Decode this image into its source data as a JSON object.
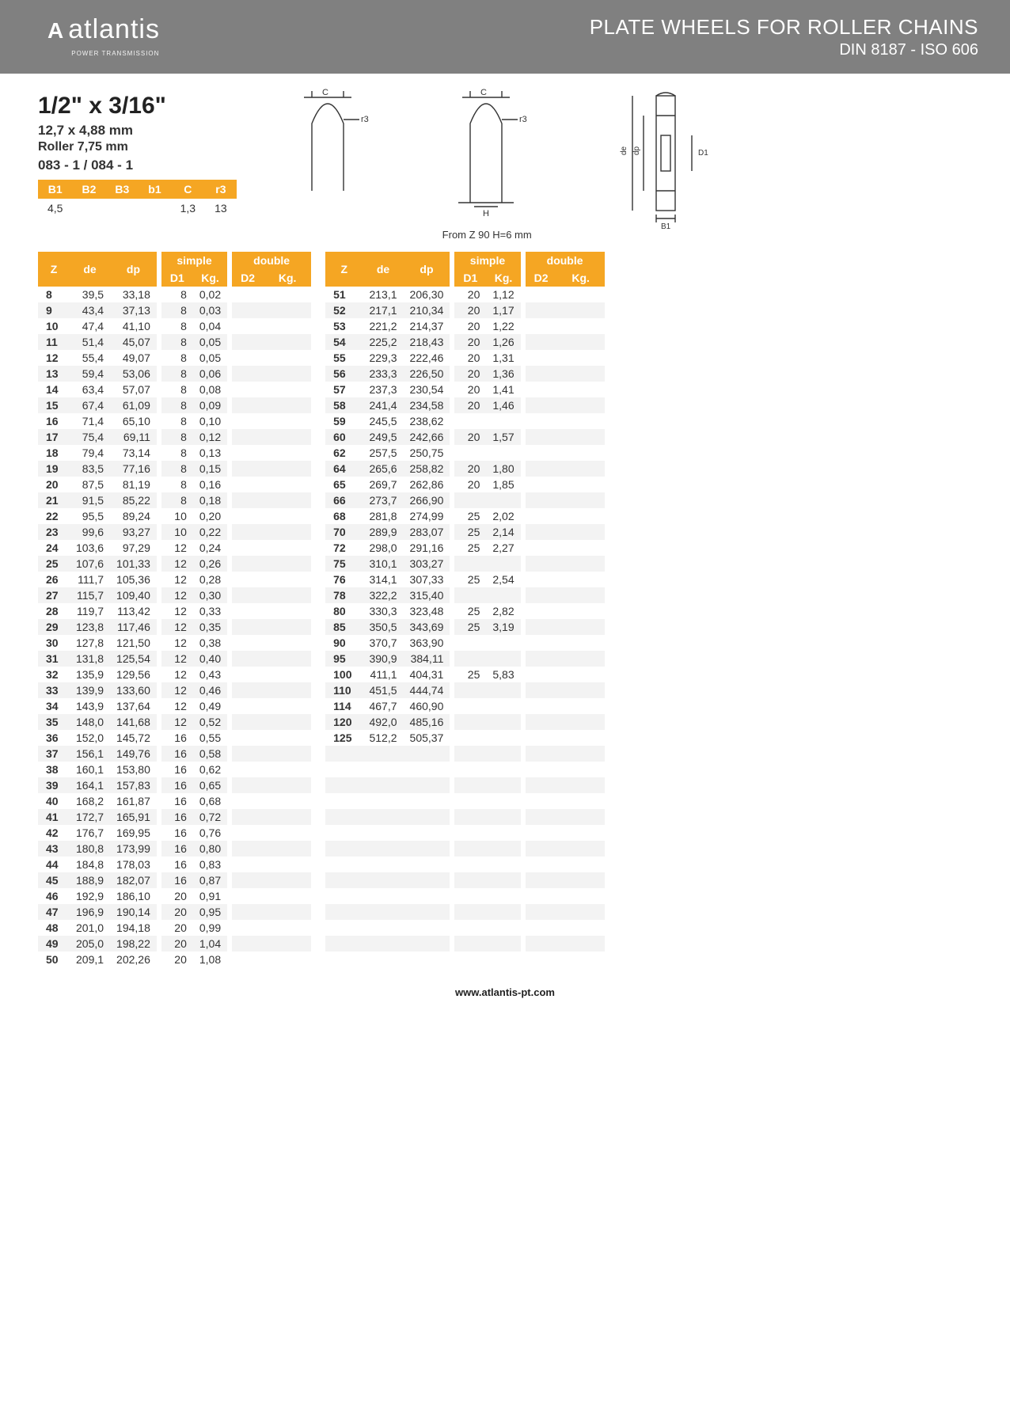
{
  "header": {
    "logo_text": "atlantis",
    "logo_sub": "POWER TRANSMISSION",
    "title": "PLATE WHEELS FOR ROLLER CHAINS",
    "subtitle": "DIN 8187 - ISO 606"
  },
  "spec": {
    "title": "1/2\" x 3/16\"",
    "line1": "12,7 x 4,88 mm",
    "line2": "Roller 7,75 mm",
    "code": "083 - 1 / 084 - 1"
  },
  "small_table": {
    "headers": [
      "B1",
      "B2",
      "B3",
      "b1",
      "C",
      "r3"
    ],
    "row": [
      "4,5",
      "",
      "",
      "",
      "1,3",
      "13"
    ]
  },
  "note": "From Z 90 H=6 mm",
  "table_headers": {
    "z": "Z",
    "de": "de",
    "dp": "dp",
    "simple": "simple",
    "double": "double",
    "d1": "D1",
    "kg": "Kg.",
    "d2": "D2",
    "kg2": "Kg."
  },
  "colors": {
    "header_bg": "#808080",
    "accent": "#f5a623",
    "row_alt": "#f3f3f3",
    "text": "#333333"
  },
  "left": [
    {
      "z": "8",
      "de": "39,5",
      "dp": "33,18",
      "d1": "8",
      "kg": "0,02"
    },
    {
      "z": "9",
      "de": "43,4",
      "dp": "37,13",
      "d1": "8",
      "kg": "0,03"
    },
    {
      "z": "10",
      "de": "47,4",
      "dp": "41,10",
      "d1": "8",
      "kg": "0,04"
    },
    {
      "z": "11",
      "de": "51,4",
      "dp": "45,07",
      "d1": "8",
      "kg": "0,05"
    },
    {
      "z": "12",
      "de": "55,4",
      "dp": "49,07",
      "d1": "8",
      "kg": "0,05"
    },
    {
      "z": "13",
      "de": "59,4",
      "dp": "53,06",
      "d1": "8",
      "kg": "0,06"
    },
    {
      "z": "14",
      "de": "63,4",
      "dp": "57,07",
      "d1": "8",
      "kg": "0,08"
    },
    {
      "z": "15",
      "de": "67,4",
      "dp": "61,09",
      "d1": "8",
      "kg": "0,09"
    },
    {
      "z": "16",
      "de": "71,4",
      "dp": "65,10",
      "d1": "8",
      "kg": "0,10"
    },
    {
      "z": "17",
      "de": "75,4",
      "dp": "69,11",
      "d1": "8",
      "kg": "0,12"
    },
    {
      "z": "18",
      "de": "79,4",
      "dp": "73,14",
      "d1": "8",
      "kg": "0,13"
    },
    {
      "z": "19",
      "de": "83,5",
      "dp": "77,16",
      "d1": "8",
      "kg": "0,15"
    },
    {
      "z": "20",
      "de": "87,5",
      "dp": "81,19",
      "d1": "8",
      "kg": "0,16"
    },
    {
      "z": "21",
      "de": "91,5",
      "dp": "85,22",
      "d1": "8",
      "kg": "0,18"
    },
    {
      "z": "22",
      "de": "95,5",
      "dp": "89,24",
      "d1": "10",
      "kg": "0,20"
    },
    {
      "z": "23",
      "de": "99,6",
      "dp": "93,27",
      "d1": "10",
      "kg": "0,22"
    },
    {
      "z": "24",
      "de": "103,6",
      "dp": "97,29",
      "d1": "12",
      "kg": "0,24"
    },
    {
      "z": "25",
      "de": "107,6",
      "dp": "101,33",
      "d1": "12",
      "kg": "0,26"
    },
    {
      "z": "26",
      "de": "111,7",
      "dp": "105,36",
      "d1": "12",
      "kg": "0,28"
    },
    {
      "z": "27",
      "de": "115,7",
      "dp": "109,40",
      "d1": "12",
      "kg": "0,30"
    },
    {
      "z": "28",
      "de": "119,7",
      "dp": "113,42",
      "d1": "12",
      "kg": "0,33"
    },
    {
      "z": "29",
      "de": "123,8",
      "dp": "117,46",
      "d1": "12",
      "kg": "0,35"
    },
    {
      "z": "30",
      "de": "127,8",
      "dp": "121,50",
      "d1": "12",
      "kg": "0,38"
    },
    {
      "z": "31",
      "de": "131,8",
      "dp": "125,54",
      "d1": "12",
      "kg": "0,40"
    },
    {
      "z": "32",
      "de": "135,9",
      "dp": "129,56",
      "d1": "12",
      "kg": "0,43"
    },
    {
      "z": "33",
      "de": "139,9",
      "dp": "133,60",
      "d1": "12",
      "kg": "0,46"
    },
    {
      "z": "34",
      "de": "143,9",
      "dp": "137,64",
      "d1": "12",
      "kg": "0,49"
    },
    {
      "z": "35",
      "de": "148,0",
      "dp": "141,68",
      "d1": "12",
      "kg": "0,52"
    },
    {
      "z": "36",
      "de": "152,0",
      "dp": "145,72",
      "d1": "16",
      "kg": "0,55"
    },
    {
      "z": "37",
      "de": "156,1",
      "dp": "149,76",
      "d1": "16",
      "kg": "0,58"
    },
    {
      "z": "38",
      "de": "160,1",
      "dp": "153,80",
      "d1": "16",
      "kg": "0,62"
    },
    {
      "z": "39",
      "de": "164,1",
      "dp": "157,83",
      "d1": "16",
      "kg": "0,65"
    },
    {
      "z": "40",
      "de": "168,2",
      "dp": "161,87",
      "d1": "16",
      "kg": "0,68"
    },
    {
      "z": "41",
      "de": "172,7",
      "dp": "165,91",
      "d1": "16",
      "kg": "0,72"
    },
    {
      "z": "42",
      "de": "176,7",
      "dp": "169,95",
      "d1": "16",
      "kg": "0,76"
    },
    {
      "z": "43",
      "de": "180,8",
      "dp": "173,99",
      "d1": "16",
      "kg": "0,80"
    },
    {
      "z": "44",
      "de": "184,8",
      "dp": "178,03",
      "d1": "16",
      "kg": "0,83"
    },
    {
      "z": "45",
      "de": "188,9",
      "dp": "182,07",
      "d1": "16",
      "kg": "0,87"
    },
    {
      "z": "46",
      "de": "192,9",
      "dp": "186,10",
      "d1": "20",
      "kg": "0,91"
    },
    {
      "z": "47",
      "de": "196,9",
      "dp": "190,14",
      "d1": "20",
      "kg": "0,95"
    },
    {
      "z": "48",
      "de": "201,0",
      "dp": "194,18",
      "d1": "20",
      "kg": "0,99"
    },
    {
      "z": "49",
      "de": "205,0",
      "dp": "198,22",
      "d1": "20",
      "kg": "1,04"
    },
    {
      "z": "50",
      "de": "209,1",
      "dp": "202,26",
      "d1": "20",
      "kg": "1,08"
    }
  ],
  "right": [
    {
      "z": "51",
      "de": "213,1",
      "dp": "206,30",
      "d1": "20",
      "kg": "1,12"
    },
    {
      "z": "52",
      "de": "217,1",
      "dp": "210,34",
      "d1": "20",
      "kg": "1,17"
    },
    {
      "z": "53",
      "de": "221,2",
      "dp": "214,37",
      "d1": "20",
      "kg": "1,22"
    },
    {
      "z": "54",
      "de": "225,2",
      "dp": "218,43",
      "d1": "20",
      "kg": "1,26"
    },
    {
      "z": "55",
      "de": "229,3",
      "dp": "222,46",
      "d1": "20",
      "kg": "1,31"
    },
    {
      "z": "56",
      "de": "233,3",
      "dp": "226,50",
      "d1": "20",
      "kg": "1,36"
    },
    {
      "z": "57",
      "de": "237,3",
      "dp": "230,54",
      "d1": "20",
      "kg": "1,41"
    },
    {
      "z": "58",
      "de": "241,4",
      "dp": "234,58",
      "d1": "20",
      "kg": "1,46"
    },
    {
      "z": "59",
      "de": "245,5",
      "dp": "238,62",
      "d1": "",
      "kg": ""
    },
    {
      "z": "60",
      "de": "249,5",
      "dp": "242,66",
      "d1": "20",
      "kg": "1,57"
    },
    {
      "z": "62",
      "de": "257,5",
      "dp": "250,75",
      "d1": "",
      "kg": ""
    },
    {
      "z": "64",
      "de": "265,6",
      "dp": "258,82",
      "d1": "20",
      "kg": "1,80"
    },
    {
      "z": "65",
      "de": "269,7",
      "dp": "262,86",
      "d1": "20",
      "kg": "1,85"
    },
    {
      "z": "66",
      "de": "273,7",
      "dp": "266,90",
      "d1": "",
      "kg": ""
    },
    {
      "z": "68",
      "de": "281,8",
      "dp": "274,99",
      "d1": "25",
      "kg": "2,02"
    },
    {
      "z": "70",
      "de": "289,9",
      "dp": "283,07",
      "d1": "25",
      "kg": "2,14"
    },
    {
      "z": "72",
      "de": "298,0",
      "dp": "291,16",
      "d1": "25",
      "kg": "2,27"
    },
    {
      "z": "75",
      "de": "310,1",
      "dp": "303,27",
      "d1": "",
      "kg": ""
    },
    {
      "z": "76",
      "de": "314,1",
      "dp": "307,33",
      "d1": "25",
      "kg": "2,54"
    },
    {
      "z": "78",
      "de": "322,2",
      "dp": "315,40",
      "d1": "",
      "kg": ""
    },
    {
      "z": "80",
      "de": "330,3",
      "dp": "323,48",
      "d1": "25",
      "kg": "2,82"
    },
    {
      "z": "85",
      "de": "350,5",
      "dp": "343,69",
      "d1": "25",
      "kg": "3,19"
    },
    {
      "z": "90",
      "de": "370,7",
      "dp": "363,90",
      "d1": "",
      "kg": ""
    },
    {
      "z": "95",
      "de": "390,9",
      "dp": "384,11",
      "d1": "",
      "kg": ""
    },
    {
      "z": "100",
      "de": "411,1",
      "dp": "404,31",
      "d1": "25",
      "kg": "5,83"
    },
    {
      "z": "110",
      "de": "451,5",
      "dp": "444,74",
      "d1": "",
      "kg": ""
    },
    {
      "z": "114",
      "de": "467,7",
      "dp": "460,90",
      "d1": "",
      "kg": ""
    },
    {
      "z": "120",
      "de": "492,0",
      "dp": "485,16",
      "d1": "",
      "kg": ""
    },
    {
      "z": "125",
      "de": "512,2",
      "dp": "505,37",
      "d1": "",
      "kg": ""
    }
  ],
  "right_pad_rows": 14,
  "footer": "www.atlantis-pt.com"
}
